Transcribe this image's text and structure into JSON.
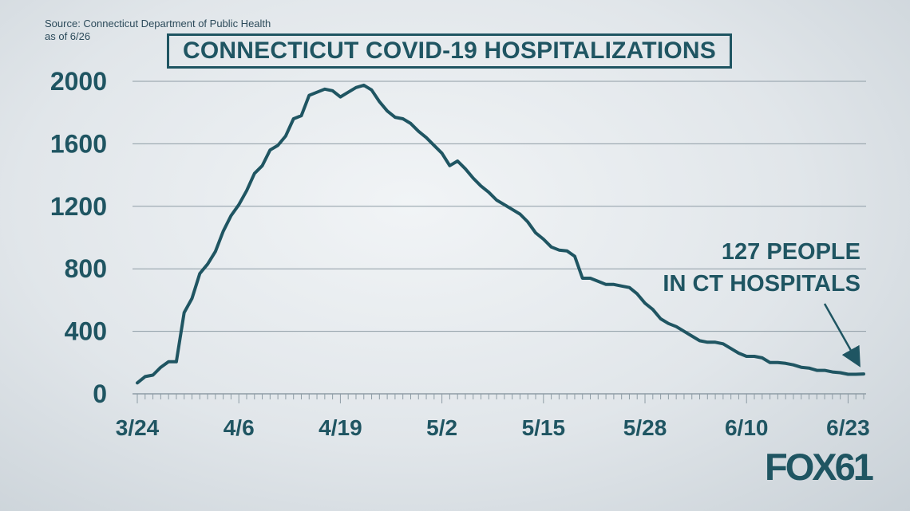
{
  "source": {
    "line1": "Source: Connecticut Department of Public Health",
    "line2": "as of 6/26"
  },
  "title": "CONNECTICUT COVID-19 HOSPITALIZATIONS",
  "annotation": {
    "line1": "127 PEOPLE",
    "line2": "IN CT HOSPITALS"
  },
  "logo": {
    "text": "FOX61"
  },
  "colors": {
    "line": "#1f5562",
    "grid": "#8e9ca5",
    "text": "#1f5562"
  },
  "chart_data": {
    "type": "line",
    "title": "CONNECTICUT COVID-19 HOSPITALIZATIONS",
    "xlabel": "",
    "ylabel": "",
    "ylim": [
      0,
      2000
    ],
    "yticks": [
      0,
      400,
      800,
      1200,
      1600,
      2000
    ],
    "ytick_labels": [
      "0",
      "400",
      "800",
      "1200",
      "1600",
      "2000"
    ],
    "x_tick_labels": [
      "3/24",
      "4/6",
      "4/19",
      "5/2",
      "5/15",
      "5/28",
      "6/10",
      "6/23"
    ],
    "grid": true,
    "x": [
      "3/24",
      "3/25",
      "3/26",
      "3/27",
      "3/28",
      "3/29",
      "3/30",
      "3/31",
      "4/1",
      "4/2",
      "4/3",
      "4/4",
      "4/5",
      "4/6",
      "4/7",
      "4/8",
      "4/9",
      "4/10",
      "4/11",
      "4/12",
      "4/13",
      "4/14",
      "4/15",
      "4/16",
      "4/17",
      "4/18",
      "4/19",
      "4/20",
      "4/21",
      "4/22",
      "4/23",
      "4/24",
      "4/25",
      "4/26",
      "4/27",
      "4/28",
      "4/29",
      "4/30",
      "5/1",
      "5/2",
      "5/3",
      "5/4",
      "5/5",
      "5/6",
      "5/7",
      "5/8",
      "5/9",
      "5/10",
      "5/11",
      "5/12",
      "5/13",
      "5/14",
      "5/15",
      "5/16",
      "5/17",
      "5/18",
      "5/19",
      "5/20",
      "5/21",
      "5/22",
      "5/23",
      "5/24",
      "5/25",
      "5/26",
      "5/27",
      "5/28",
      "5/29",
      "5/30",
      "5/31",
      "6/1",
      "6/2",
      "6/3",
      "6/4",
      "6/5",
      "6/6",
      "6/7",
      "6/8",
      "6/9",
      "6/10",
      "6/11",
      "6/12",
      "6/13",
      "6/14",
      "6/15",
      "6/16",
      "6/17",
      "6/18",
      "6/19",
      "6/20",
      "6/21",
      "6/22",
      "6/23",
      "6/24",
      "6/25"
    ],
    "series": [
      {
        "values": [
          70,
          110,
          120,
          170,
          205,
          205,
          520,
          610,
          770,
          830,
          910,
          1040,
          1140,
          1210,
          1300,
          1410,
          1460,
          1560,
          1590,
          1650,
          1760,
          1780,
          1910,
          1930,
          1950,
          1940,
          1900,
          1930,
          1960,
          1975,
          1945,
          1870,
          1810,
          1770,
          1760,
          1730,
          1680,
          1640,
          1590,
          1540,
          1460,
          1490,
          1440,
          1380,
          1330,
          1290,
          1240,
          1210,
          1180,
          1150,
          1100,
          1030,
          990,
          940,
          920,
          915,
          880,
          740,
          740,
          720,
          700,
          700,
          690,
          680,
          640,
          580,
          540,
          480,
          450,
          430,
          400,
          370,
          340,
          330,
          330,
          320,
          290,
          260,
          240,
          240,
          230,
          200,
          200,
          195,
          185,
          170,
          165,
          150,
          150,
          140,
          135,
          125,
          125,
          127
        ]
      }
    ]
  }
}
